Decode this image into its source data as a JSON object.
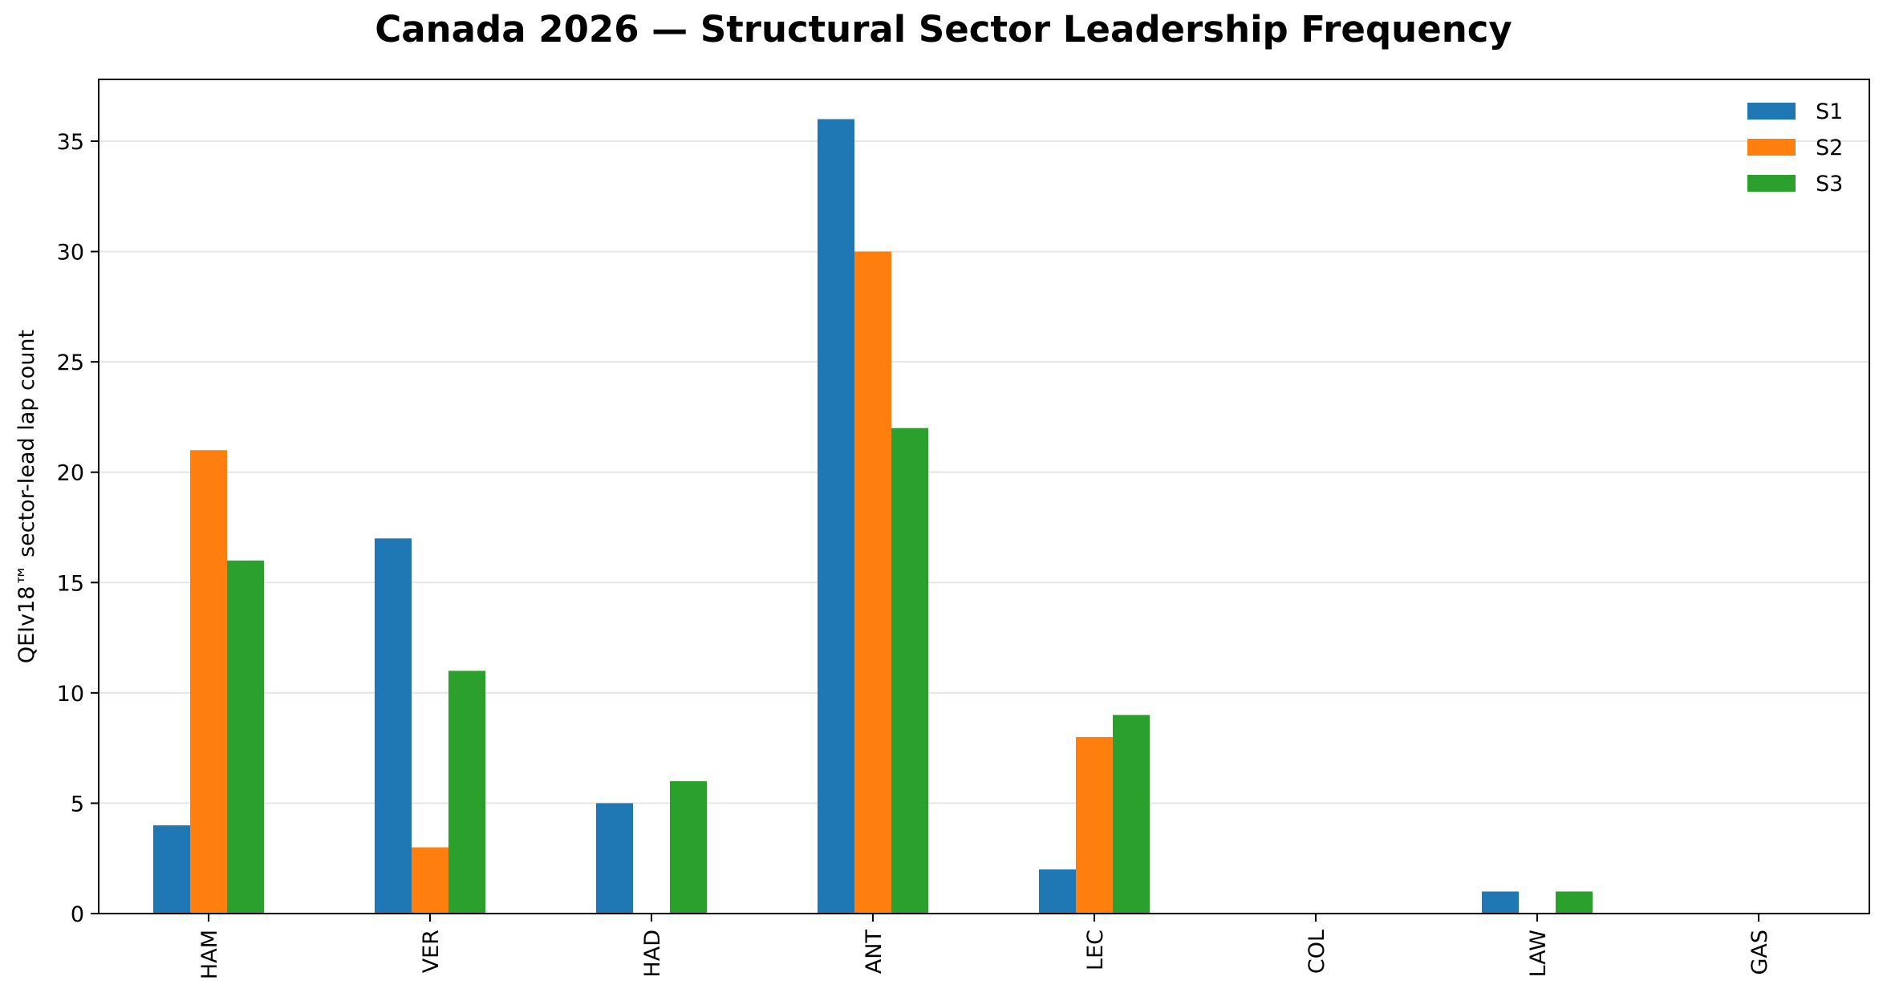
{
  "chart_data": {
    "type": "bar",
    "title": "Canada 2026 — Structural Sector Leadership Frequency",
    "xlabel": "",
    "ylabel": "QEIv18™ sector-lead lap count",
    "categories": [
      "HAM",
      "VER",
      "HAD",
      "ANT",
      "LEC",
      "COL",
      "LAW",
      "GAS"
    ],
    "series": [
      {
        "name": "S1",
        "color": "#1f77b4",
        "values": [
          4,
          17,
          5,
          36,
          2,
          0,
          1,
          0
        ]
      },
      {
        "name": "S2",
        "color": "#ff7f0e",
        "values": [
          21,
          3,
          0,
          30,
          8,
          0,
          0,
          0
        ]
      },
      {
        "name": "S3",
        "color": "#2ca02c",
        "values": [
          16,
          11,
          6,
          22,
          9,
          0,
          1,
          0
        ]
      }
    ],
    "ylim": [
      0,
      37.8
    ],
    "yticks": [
      0,
      5,
      10,
      15,
      20,
      25,
      30,
      35
    ],
    "grid": "y",
    "legend_position": "top-right"
  }
}
